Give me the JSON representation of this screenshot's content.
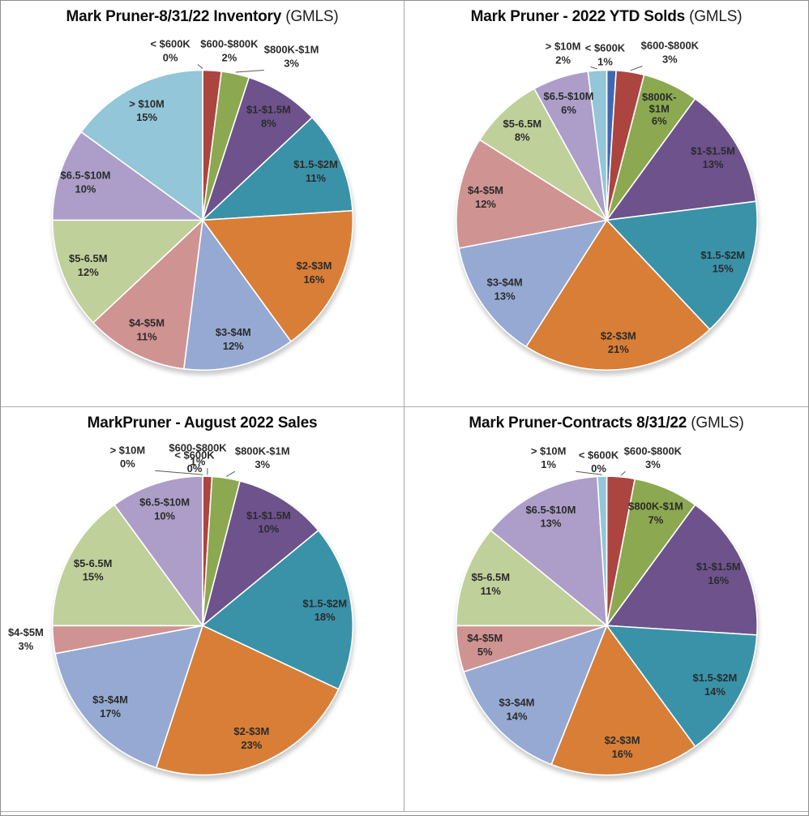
{
  "page": {
    "background": "#FFFFFF",
    "outer_border": "#8F8F8F",
    "cell_border": "#ABABAB"
  },
  "palette": {
    "slice_colors": [
      "#4068B0",
      "#AC4440",
      "#8CA850",
      "#6D528C",
      "#3A92A8",
      "#D87E36",
      "#95A9D2",
      "#CF9391",
      "#BFD09A",
      "#AC9EC8",
      "#92C6D8"
    ],
    "label_color": "#2B2B2B",
    "leader_color": "#5A5A5A",
    "title_color": "#0D0D0D",
    "shadow_color": "#999999"
  },
  "chart_data": [
    {
      "type": "pie",
      "title": "Mark Pruner-8/31/22 Inventory",
      "title_suffix": "(GMLS)",
      "categories": [
        "< $600K",
        "$600-$800K",
        "$800K-$1M",
        "$1-$1.5M",
        "$1.5-$2M",
        "$2-$3M",
        "$3-$4M",
        "$4-$5M",
        "$5-6.5M",
        "$6.5-$10M",
        "> $10M"
      ],
      "values": [
        0,
        2,
        3,
        8,
        11,
        16,
        12,
        11,
        12,
        10,
        15
      ],
      "values_unit": "percent",
      "start_angle": "12-o-clock",
      "direction": "clockwise",
      "labels_outside": {
        "0": [
          210,
          62
        ],
        "1": [
          283,
          62
        ],
        "2": [
          360,
          69
        ]
      }
    },
    {
      "type": "pie",
      "title": "Mark Pruner - 2022 YTD Solds",
      "title_suffix": "(GMLS)",
      "categories": [
        "< $600K",
        "$600-$800K",
        "$800K-$1M",
        "$1-$1.5M",
        "$1.5-$2M",
        "$2-$3M",
        "$3-$4M",
        "$4-$5M",
        "$5-6.5M",
        "$6.5-$10M",
        "> $10M"
      ],
      "values": [
        1,
        3,
        6,
        13,
        15,
        21,
        13,
        12,
        8,
        6,
        2
      ],
      "values_unit": "percent",
      "start_angle": "12-o-clock",
      "direction": "clockwise",
      "labels_outside": {
        "0": [
          248,
          67
        ],
        "1": [
          328,
          64
        ],
        "10": [
          196,
          65
        ]
      },
      "wrapped_labels": {
        "2": [
          "$800K-",
          "$1M"
        ]
      }
    },
    {
      "type": "pie",
      "title": "MarkPruner - August 2022 Sales",
      "title_suffix": "",
      "categories": [
        "< $600K",
        "$600-$800K",
        "$800K-$1M",
        "$1-$1.5M",
        "$1.5-$2M",
        "$2-$3M",
        "$3-$4M",
        "$4-$5M",
        "$5-6.5M",
        "$6.5-$10M",
        "> $10M"
      ],
      "values": [
        0,
        1,
        3,
        10,
        18,
        23,
        17,
        3,
        15,
        10,
        0
      ],
      "values_unit": "percent",
      "start_angle": "12-o-clock",
      "direction": "clockwise",
      "labels_outside": {
        "0": [
          240,
          68
        ],
        "1": [
          244,
          59
        ],
        "2": [
          324,
          63
        ],
        "7": [
          31,
          289
        ],
        "10": [
          157,
          62
        ]
      }
    },
    {
      "type": "pie",
      "title": "Mark Pruner-Contracts 8/31/22",
      "title_suffix": "(GMLS)",
      "categories": [
        "< $600K",
        "$600-$800K",
        "$800K-$1M",
        "$1-$1.5M",
        "$1.5-$2M",
        "$2-$3M",
        "$3-$4M",
        "$4-$5M",
        "$5-6.5M",
        "$6.5-$10M",
        "> $10M"
      ],
      "values": [
        0,
        3,
        7,
        16,
        14,
        16,
        14,
        5,
        11,
        13,
        1
      ],
      "values_unit": "percent",
      "start_angle": "12-o-clock",
      "direction": "clockwise",
      "labels_outside": {
        "0": [
          240,
          68
        ],
        "1": [
          307,
          63
        ],
        "10": [
          178,
          63
        ]
      }
    }
  ]
}
